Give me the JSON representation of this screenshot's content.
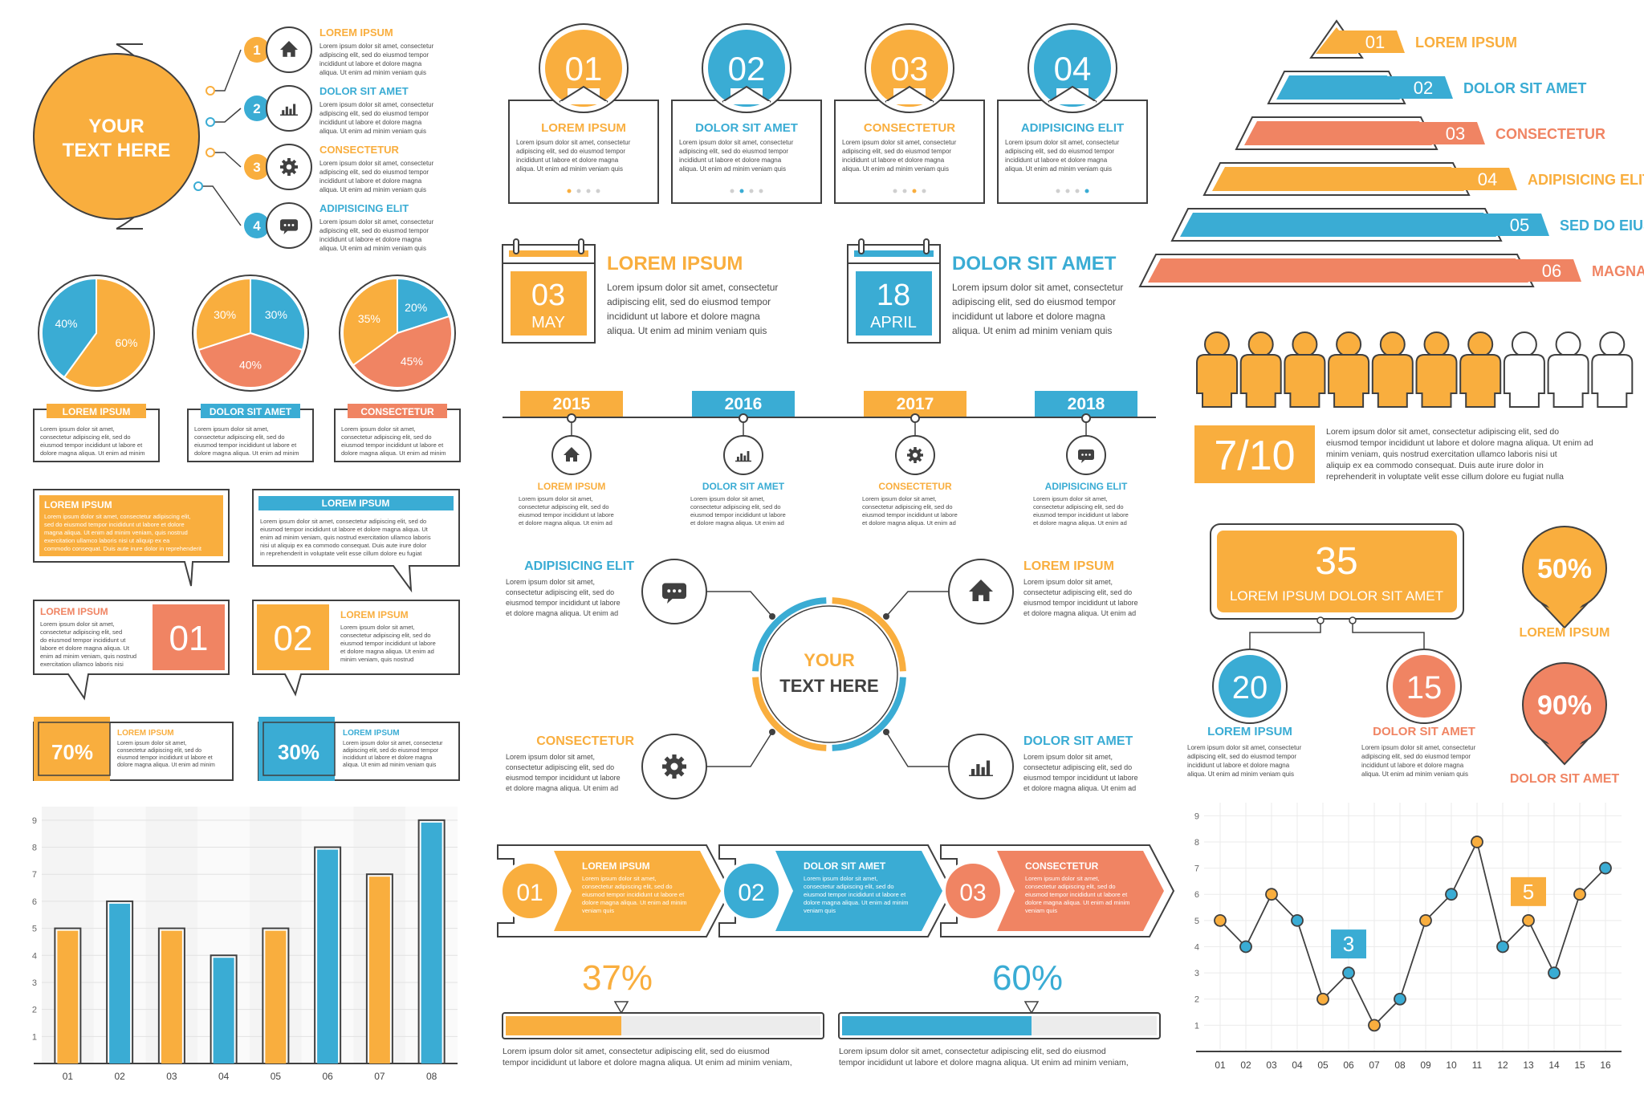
{
  "colors": {
    "orange": "#F9AE3E",
    "blue": "#3AACD4",
    "coral": "#F08463",
    "dark": "#404040",
    "light": "#E0E0E0"
  },
  "para_long": "Lorem ipsum dolor sit amet, consectetur adipiscing elit, sed do eiusmod tempor incididunt ut labore et dolore magna aliqua. Ut enim ad minim veniam, quis nostrud exercitation ullamco laboris nisi ut aliquip ex ea commodo consequat. Duis aute irure dolor in reprehenderit in voluptate velit esse cillum dolore eu fugiat nulla pariatur.",
  "para_short": "Lorem ipsum dolor sit amet, consectetur adipiscing elit, sed do eiusmod tempor incididunt ut labore et dolore magna aliqua. Ut enim ad minim veniam quis",
  "circle_list": {
    "center": [
      "YOUR",
      "TEXT HERE"
    ],
    "items": [
      {
        "num": "1",
        "title": "LOREM IPSUM",
        "icon": "home-icon"
      },
      {
        "num": "2",
        "title": "DOLOR SIT AMET",
        "icon": "chart-icon"
      },
      {
        "num": "3",
        "title": "CONSECTETUR",
        "icon": "gear-icon"
      },
      {
        "num": "4",
        "title": "ADIPISICING ELIT",
        "icon": "chat-icon"
      }
    ]
  },
  "pies": [
    {
      "label": "LOREM IPSUM",
      "slices": [
        {
          "value": 60,
          "label": "60%",
          "color": "#F9AE3E"
        },
        {
          "value": 40,
          "label": "40%",
          "color": "#3AACD4"
        }
      ]
    },
    {
      "label": "DOLOR SIT AMET",
      "slices": [
        {
          "value": 30,
          "label": "30%",
          "color": "#3AACD4"
        },
        {
          "value": 40,
          "label": "40%",
          "color": "#F08463"
        },
        {
          "value": 30,
          "label": "30%",
          "color": "#F9AE3E"
        }
      ]
    },
    {
      "label": "CONSECTETUR",
      "slices": [
        {
          "value": 20,
          "label": "20%",
          "color": "#3AACD4"
        },
        {
          "value": 45,
          "label": "45%",
          "color": "#F08463"
        },
        {
          "value": 35,
          "label": "35%",
          "color": "#F9AE3E"
        }
      ]
    }
  ],
  "speech": {
    "box1": {
      "title": "LOREM IPSUM"
    },
    "box2": {
      "title": "LOREM IPSUM"
    },
    "box3": {
      "title": "LOREM IPSUM",
      "num": "01"
    },
    "box4": {
      "title": "LOREM IPSUM",
      "num": "02"
    },
    "pct1": {
      "value": "70%",
      "title": "LOREM IPSUM"
    },
    "pct2": {
      "value": "30%",
      "title": "LOREM IPSUM"
    }
  },
  "cards": [
    {
      "num": "01",
      "title": "LOREM IPSUM",
      "color": "#F9AE3E",
      "active": 1
    },
    {
      "num": "02",
      "title": "DOLOR SIT AMET",
      "color": "#3AACD4",
      "active": 2
    },
    {
      "num": "03",
      "title": "CONSECTETUR",
      "color": "#F9AE3E",
      "active": 3
    },
    {
      "num": "04",
      "title": "ADIPISICING ELIT",
      "color": "#3AACD4",
      "active": 4
    }
  ],
  "calendars": [
    {
      "day": "03",
      "month": "MAY",
      "title": "LOREM IPSUM",
      "color": "#F9AE3E"
    },
    {
      "day": "18",
      "month": "APRIL",
      "title": "DOLOR SIT AMET",
      "color": "#3AACD4"
    }
  ],
  "timeline": [
    {
      "year": "2015",
      "title": "LOREM IPSUM",
      "color": "#F9AE3E",
      "icon": "home-icon"
    },
    {
      "year": "2016",
      "title": "DOLOR SIT AMET",
      "color": "#3AACD4",
      "icon": "chart-icon"
    },
    {
      "year": "2017",
      "title": "CONSECTETUR",
      "color": "#F9AE3E",
      "icon": "gear-icon"
    },
    {
      "year": "2018",
      "title": "ADIPISICING ELIT",
      "color": "#3AACD4",
      "icon": "chat-icon"
    }
  ],
  "hub": {
    "center": [
      "YOUR",
      "TEXT HERE"
    ],
    "items": [
      {
        "title": "ADIPISICING ELIT",
        "color": "#3AACD4",
        "icon": "chat-icon"
      },
      {
        "title": "LOREM IPSUM",
        "color": "#F9AE3E",
        "icon": "home-icon"
      },
      {
        "title": "CONSECTETUR",
        "color": "#F9AE3E",
        "icon": "gear-icon"
      },
      {
        "title": "DOLOR SIT AMET",
        "color": "#3AACD4",
        "icon": "chart-icon"
      }
    ]
  },
  "arrows": [
    {
      "num": "01",
      "title": "LOREM IPSUM",
      "color": "#F9AE3E"
    },
    {
      "num": "02",
      "title": "DOLOR SIT AMET",
      "color": "#3AACD4"
    },
    {
      "num": "03",
      "title": "CONSECTETUR",
      "color": "#F08463"
    }
  ],
  "progress": [
    {
      "label": "37%",
      "value": 0.37,
      "color": "#F9AE3E"
    },
    {
      "label": "60%",
      "value": 0.6,
      "color": "#3AACD4"
    }
  ],
  "progress_text": "Lorem ipsum dolor sit amet, consectetur adipiscing elit, sed do eiusmod tempor incididunt ut labore et dolore magna aliqua. Ut enim ad minim veniam, quis",
  "pyramid": [
    {
      "num": "01",
      "title": "LOREM IPSUM",
      "color": "#F9AE3E"
    },
    {
      "num": "02",
      "title": "DOLOR SIT AMET",
      "color": "#3AACD4"
    },
    {
      "num": "03",
      "title": "CONSECTETUR",
      "color": "#F08463"
    },
    {
      "num": "04",
      "title": "ADIPISICING ELIT",
      "color": "#F9AE3E"
    },
    {
      "num": "05",
      "title": "SED DO EIUSMOD",
      "color": "#3AACD4"
    },
    {
      "num": "06",
      "title": "MAGNA ALIQUA",
      "color": "#F08463"
    }
  ],
  "people": {
    "filled": 7,
    "total": 10,
    "label": "7/10"
  },
  "org": {
    "top_num": "35",
    "top_title": "LOREM IPSUM DOLOR SIT AMET",
    "left": {
      "num": "20",
      "title": "LOREM IPSUM"
    },
    "right": {
      "num": "15",
      "title": "DOLOR SIT AMET"
    }
  },
  "pins": [
    {
      "value": "50%",
      "title": "LOREM IPSUM",
      "color": "#F9AE3E"
    },
    {
      "value": "90%",
      "title": "DOLOR SIT AMET",
      "color": "#F08463"
    }
  ],
  "chart_data": [
    {
      "type": "bar",
      "categories": [
        "01",
        "02",
        "03",
        "04",
        "05",
        "06",
        "07",
        "08"
      ],
      "values": [
        5,
        6,
        5,
        4,
        5,
        8,
        7,
        9
      ],
      "bar_colors": [
        "#F9AE3E",
        "#3AACD4",
        "#F9AE3E",
        "#3AACD4",
        "#F9AE3E",
        "#3AACD4",
        "#F9AE3E",
        "#3AACD4"
      ],
      "yticks": [
        "1",
        "2",
        "3",
        "4",
        "5",
        "6",
        "7",
        "8",
        "9"
      ],
      "ylim": [
        0,
        9.5
      ],
      "grid": true
    },
    {
      "type": "line",
      "categories": [
        "01",
        "02",
        "03",
        "04",
        "05",
        "06",
        "07",
        "08",
        "09",
        "10",
        "11",
        "12",
        "13",
        "14",
        "15",
        "16"
      ],
      "values": [
        5,
        4,
        6,
        5,
        2,
        3,
        1,
        2,
        5,
        6,
        8,
        4,
        5,
        3,
        6,
        7
      ],
      "point_colors": [
        "#F9AE3E",
        "#3AACD4",
        "#F9AE3E",
        "#3AACD4",
        "#F9AE3E",
        "#3AACD4",
        "#F9AE3E",
        "#3AACD4",
        "#F9AE3E",
        "#3AACD4",
        "#F9AE3E",
        "#3AACD4",
        "#F9AE3E",
        "#3AACD4",
        "#F9AE3E",
        "#3AACD4"
      ],
      "yticks": [
        "1",
        "2",
        "3",
        "4",
        "5",
        "6",
        "7",
        "8",
        "9"
      ],
      "ylim": [
        0,
        9.5
      ],
      "grid": true,
      "callouts": [
        {
          "index": 5,
          "label": "3",
          "color": "#3AACD4"
        },
        {
          "index": 12,
          "label": "5",
          "color": "#F9AE3E"
        }
      ]
    }
  ]
}
